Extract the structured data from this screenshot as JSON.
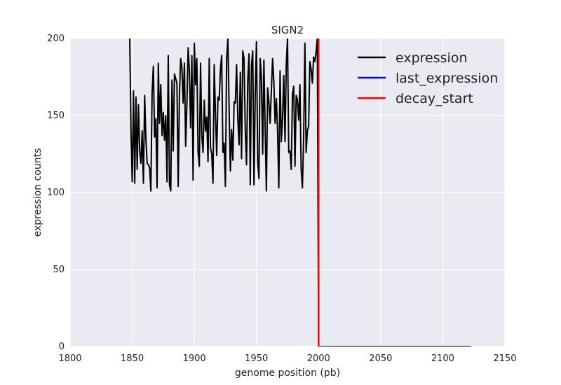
{
  "chart_data": {
    "type": "line",
    "title": "SIGN2",
    "xlabel": "genome position (pb)",
    "ylabel": "expression counts",
    "xlim": [
      1800,
      2150
    ],
    "ylim": [
      0,
      200
    ],
    "xticks": [
      1800,
      1850,
      1900,
      1950,
      2000,
      2050,
      2100,
      2150
    ],
    "yticks": [
      0,
      50,
      100,
      150,
      200
    ],
    "grid": true,
    "background": "#eaeaf2",
    "legend_position": "top-right",
    "series": [
      {
        "name": "expression",
        "color": "#000000",
        "style": "line",
        "x": [
          1848,
          1849,
          1850,
          1851,
          1852,
          1853,
          1854,
          1855,
          1856,
          1857,
          1858,
          1859,
          1860,
          1861,
          1862,
          1863,
          1864,
          1865,
          1866,
          1867,
          1868,
          1869,
          1870,
          1871,
          1872,
          1873,
          1874,
          1875,
          1876,
          1877,
          1878,
          1879,
          1880,
          1881,
          1882,
          1883,
          1884,
          1885,
          1886,
          1887,
          1888,
          1889,
          1890,
          1891,
          1892,
          1893,
          1894,
          1895,
          1896,
          1897,
          1898,
          1899,
          1900,
          1901,
          1902,
          1903,
          1904,
          1905,
          1906,
          1907,
          1908,
          1909,
          1910,
          1911,
          1912,
          1913,
          1914,
          1915,
          1916,
          1917,
          1918,
          1919,
          1920,
          1921,
          1922,
          1923,
          1924,
          1925,
          1926,
          1927,
          1928,
          1929,
          1930,
          1931,
          1932,
          1933,
          1934,
          1935,
          1936,
          1937,
          1938,
          1939,
          1940,
          1941,
          1942,
          1943,
          1944,
          1945,
          1946,
          1947,
          1948,
          1949,
          1950,
          1951,
          1952,
          1953,
          1954,
          1955,
          1956,
          1957,
          1958,
          1959,
          1960,
          1961,
          1962,
          1963,
          1964,
          1965,
          1966,
          1967,
          1968,
          1969,
          1970,
          1971,
          1972,
          1973,
          1974,
          1975,
          1976,
          1977,
          1978,
          1979,
          1980,
          1981,
          1982,
          1983,
          1984,
          1985,
          1986,
          1987,
          1988,
          1989,
          1990,
          1991,
          1992,
          1993,
          1994,
          1995,
          1996,
          1997,
          1998,
          1999,
          2000,
          2123
        ],
        "y": [
          200,
          140,
          107,
          166,
          106,
          162,
          115,
          157,
          127,
          119,
          140,
          106,
          163,
          135,
          119,
          118,
          116,
          101,
          165,
          182,
          136,
          148,
          103,
          184,
          145,
          170,
          137,
          152,
          134,
          150,
          107,
          189,
          105,
          101,
          173,
          127,
          177,
          174,
          171,
          104,
          163,
          187,
          181,
          158,
          184,
          130,
          157,
          194,
          179,
          142,
          189,
          108,
          197,
          170,
          187,
          126,
          117,
          184,
          137,
          126,
          160,
          140,
          149,
          120,
          187,
          129,
          125,
          106,
          183,
          151,
          124,
          162,
          160,
          180,
          189,
          126,
          132,
          104,
          187,
          200,
          154,
          114,
          141,
          121,
          159,
          158,
          183,
          148,
          131,
          178,
          122,
          192,
          187,
          141,
          118,
          173,
          190,
          105,
          183,
          192,
          105,
          163,
          198,
          120,
          109,
          187,
          175,
          125,
          186,
          141,
          101,
          168,
          159,
          145,
          166,
          187,
          172,
          145,
          161,
          140,
          103,
          179,
          133,
          148,
          176,
          133,
          183,
          200,
          126,
          127,
          115,
          164,
          169,
          117,
          163,
          160,
          147,
          170,
          115,
          103,
          136,
          197,
          126,
          140,
          143,
          185,
          180,
          171,
          188,
          185,
          191,
          200,
          0,
          0
        ]
      },
      {
        "name": "last_expression",
        "color": "#0000ff",
        "style": "vline",
        "x": 2000
      },
      {
        "name": "decay_start",
        "color": "#ff0000",
        "style": "vline",
        "x": 2000
      }
    ]
  }
}
